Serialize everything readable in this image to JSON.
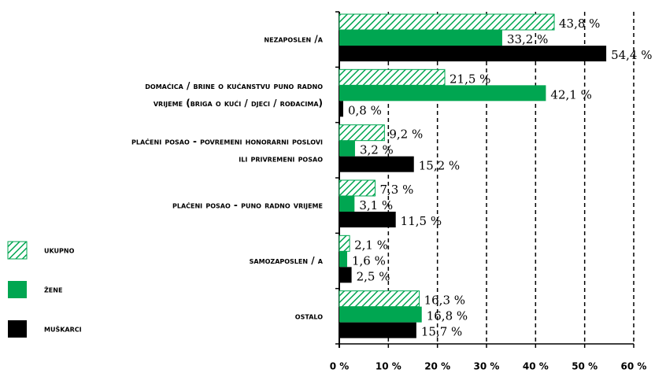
{
  "chart_data": {
    "type": "bar",
    "orientation": "horizontal",
    "categories": [
      [
        "nezaposlen /a"
      ],
      [
        "domaćica / brine o kućanstvu puno radno",
        "vrijeme (briga o kući / djeci / rođacima)"
      ],
      [
        "plaćeni posao - povremeni honorarni poslovi",
        "ili privremeni posao"
      ],
      [
        "plaćeni posao - puno radno vrijeme"
      ],
      [
        "samozaposlen / a"
      ],
      [
        "ostalo"
      ]
    ],
    "series": [
      {
        "name": "ukupno",
        "color": "#00a651",
        "hatch": true,
        "values": [
          43.8,
          21.5,
          9.2,
          7.3,
          2.1,
          16.3
        ],
        "value_labels": [
          "43,8 %",
          "21,5 %",
          "9,2 %",
          "7,3 %",
          "2,1 %",
          "16,3 %"
        ]
      },
      {
        "name": "žene",
        "color": "#00a651",
        "hatch": false,
        "values": [
          33.2,
          42.1,
          3.2,
          3.1,
          1.6,
          16.8
        ],
        "value_labels": [
          "33,2 %",
          "42,1 %",
          "3,2 %",
          "3,1 %",
          "1,6 %",
          "16,8 %"
        ]
      },
      {
        "name": "muškarci",
        "color": "#000000",
        "hatch": false,
        "values": [
          54.4,
          0.8,
          15.2,
          11.5,
          2.5,
          15.7
        ],
        "value_labels": [
          "54,4 %",
          "0,8 %",
          "15,2 %",
          "11,5 %",
          "2,5 %",
          "15,7 %"
        ]
      }
    ],
    "xlim": [
      0,
      60
    ],
    "xticks": [
      {
        "value": 0,
        "label": "0 %"
      },
      {
        "value": 10,
        "label": "10 %"
      },
      {
        "value": 20,
        "label": "20 %"
      },
      {
        "value": 30,
        "label": "30 %"
      },
      {
        "value": 40,
        "label": "40 %"
      },
      {
        "value": 50,
        "label": "50 %"
      },
      {
        "value": 60,
        "label": "60 %"
      }
    ],
    "grid": true,
    "legend": "left"
  }
}
